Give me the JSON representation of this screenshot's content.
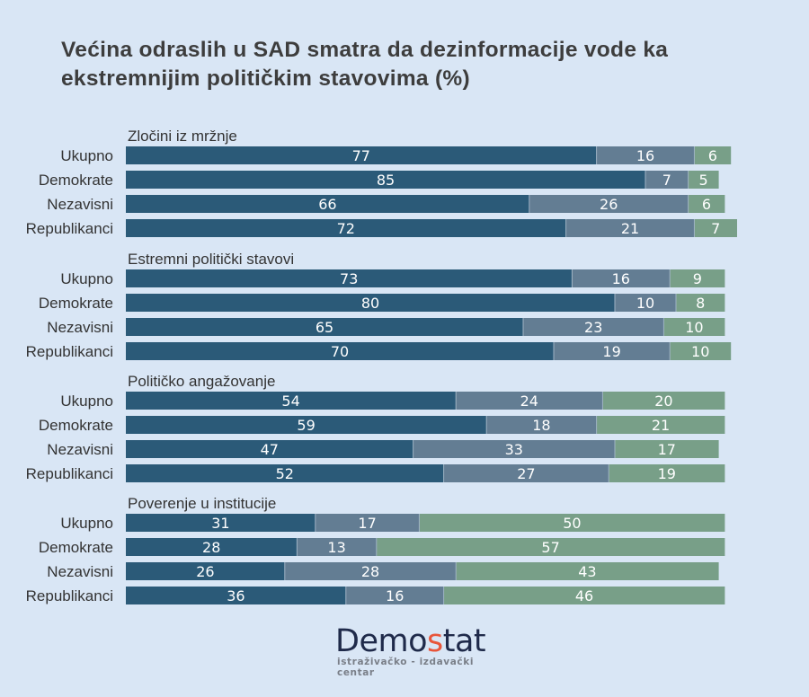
{
  "title": "Većina odraslih u SAD smatra da dezinformacije vode ka ekstremnijim političkim stavovima (%)",
  "logo": {
    "name_part1": "Demo",
    "name_accent": "s",
    "name_part2": "tat",
    "subtitle": "istraživačko - izdavački  centar"
  },
  "colors": {
    "background": "#d9e6f5",
    "segment1": "#2b5a78",
    "segment2": "#637d93",
    "segment3": "#789f88"
  },
  "chart_data": {
    "type": "bar",
    "orientation": "horizontal-stacked",
    "title": "Većina odraslih u SAD smatra da dezinformacije vode ka ekstremnijim političkim stavovima (%)",
    "xlabel": "",
    "ylabel": "",
    "xlim": [
      0,
      100
    ],
    "grid": false,
    "legend": "none",
    "groups": [
      {
        "label": "Zločini iz mržnje",
        "rows": [
          {
            "label": "Ukupno",
            "values": [
              77,
              16,
              6
            ]
          },
          {
            "label": "Demokrate",
            "values": [
              85,
              7,
              5
            ]
          },
          {
            "label": "Nezavisni",
            "values": [
              66,
              26,
              6
            ]
          },
          {
            "label": "Republikanci",
            "values": [
              72,
              21,
              7
            ]
          }
        ]
      },
      {
        "label": "Estremni politički stavovi",
        "rows": [
          {
            "label": "Ukupno",
            "values": [
              73,
              16,
              9
            ]
          },
          {
            "label": "Demokrate",
            "values": [
              80,
              10,
              8
            ]
          },
          {
            "label": "Nezavisni",
            "values": [
              65,
              23,
              10
            ]
          },
          {
            "label": "Republikanci",
            "values": [
              70,
              19,
              10
            ]
          }
        ]
      },
      {
        "label": "Političko angažovanje",
        "rows": [
          {
            "label": "Ukupno",
            "values": [
              54,
              24,
              20
            ]
          },
          {
            "label": "Demokrate",
            "values": [
              59,
              18,
              21
            ]
          },
          {
            "label": "Nezavisni",
            "values": [
              47,
              33,
              17
            ]
          },
          {
            "label": "Republikanci",
            "values": [
              52,
              27,
              19
            ]
          }
        ]
      },
      {
        "label": "Poverenje u institucije",
        "rows": [
          {
            "label": "Ukupno",
            "values": [
              31,
              17,
              50
            ]
          },
          {
            "label": "Demokrate",
            "values": [
              28,
              13,
              57
            ]
          },
          {
            "label": "Nezavisni",
            "values": [
              26,
              28,
              43
            ]
          },
          {
            "label": "Republikanci",
            "values": [
              36,
              16,
              46
            ]
          }
        ]
      }
    ]
  }
}
